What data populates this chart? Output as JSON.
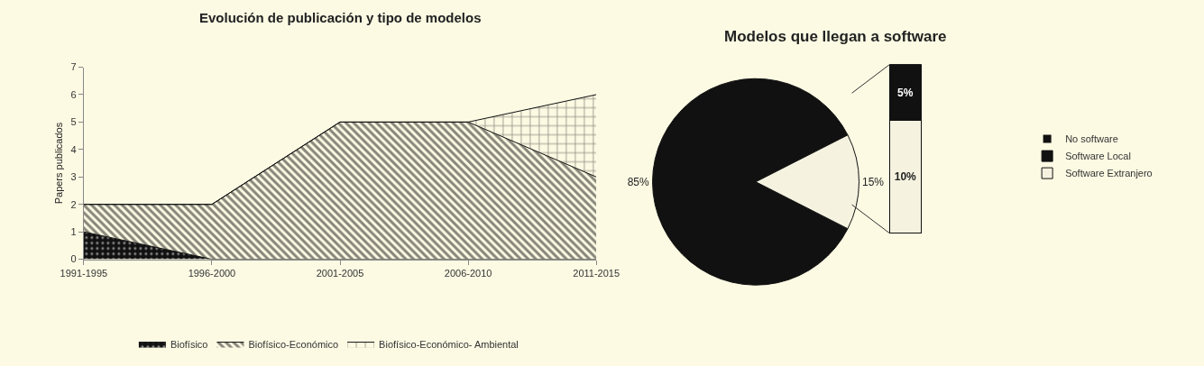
{
  "chart_data": [
    {
      "type": "area",
      "title": "Evolución de publicación y tipo de modelos",
      "ylabel": "Papers publicados",
      "categories": [
        "1991-1995",
        "1996-2000",
        "2001-2005",
        "2006-2010",
        "2011-2015"
      ],
      "stacked": true,
      "ylim": [
        0,
        7
      ],
      "yticks": [
        0,
        1,
        2,
        3,
        4,
        5,
        6,
        7
      ],
      "grid": false,
      "legend": "bottom",
      "series": [
        {
          "name": "Biofísico",
          "color": "#111111",
          "values": [
            1,
            0,
            0,
            0,
            0
          ]
        },
        {
          "name": "Biofísico-Económico",
          "color": "#111111",
          "values": [
            1,
            2,
            5,
            5,
            3
          ]
        },
        {
          "name": "Biofísico-Económico- Ambiental",
          "color": "#111111",
          "values": [
            0,
            0,
            0,
            0,
            3
          ]
        }
      ]
    },
    {
      "type": "pie",
      "title": "Modelos que llegan a software",
      "categories": [
        "No software",
        null
      ],
      "values": [
        85,
        15
      ],
      "colors": [
        "#111111",
        "#f5f3e0"
      ],
      "value_labels": [
        "85%",
        "15%"
      ],
      "legend": "right"
    },
    {
      "type": "bar",
      "stacked": true,
      "categories": [
        null
      ],
      "legend": "right",
      "series": [
        {
          "name": "Software Extranjero",
          "color": "#f5f3e0",
          "values": [
            10
          ],
          "value_labels": [
            "10%"
          ]
        },
        {
          "name": "Software Local",
          "color": "#111111",
          "values": [
            5
          ],
          "value_labels": [
            "5%"
          ]
        }
      ]
    }
  ]
}
